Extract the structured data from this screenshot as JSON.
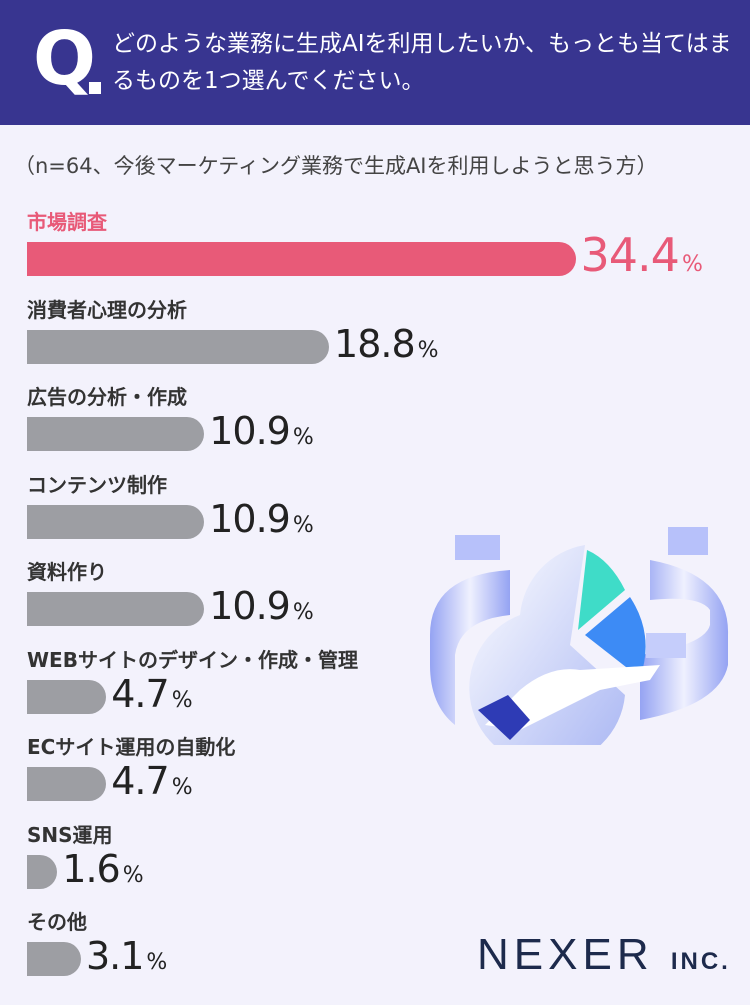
{
  "header": {
    "q_mark": "Q",
    "question": "どのような業務に生成AIを利用したいか、もっとも当てはまるものを1つ選んでください。"
  },
  "note": "（n=64、今後マーケティング業務で生成AIを利用しようと思う方）",
  "logo": {
    "name": "NEXER",
    "suffix": "INC."
  },
  "colors": {
    "header": "#383590",
    "highlight": "#e85a78",
    "bar": "#9d9ea3",
    "background": "#f3f2fc"
  },
  "chart_data": {
    "type": "bar",
    "orientation": "horizontal",
    "unit": "%",
    "categories": [
      "市場調査",
      "消費者心理の分析",
      "広告の分析・作成",
      "コンテンツ制作",
      "資料作り",
      "WEBサイトのデザイン・作成・管理",
      "ECサイト運用の自動化",
      "SNS運用",
      "その他"
    ],
    "values": [
      34.4,
      18.8,
      10.9,
      10.9,
      10.9,
      4.7,
      4.7,
      1.6,
      3.1
    ],
    "highlight_index": 0
  }
}
